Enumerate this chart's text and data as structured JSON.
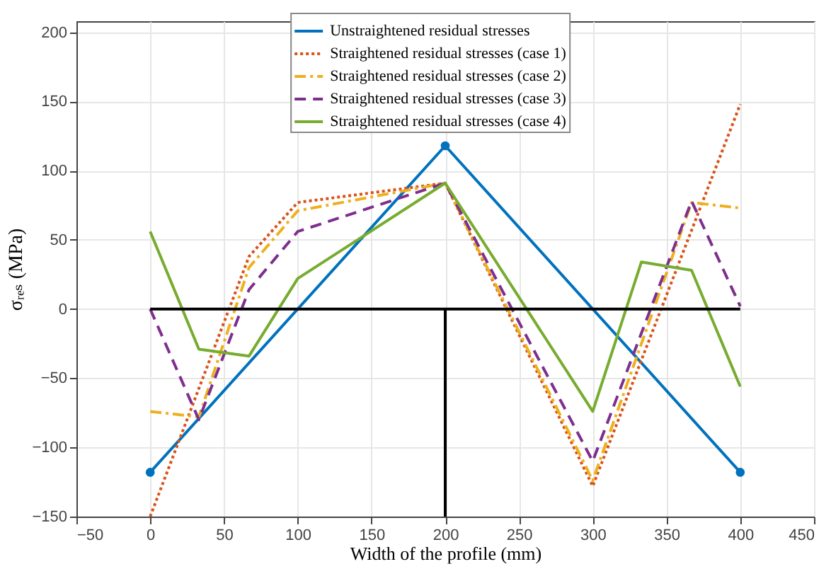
{
  "chart_data": {
    "type": "line",
    "xlabel": "Width of the profile (mm)",
    "ylabel": "σᵣₑₛ (MPa)",
    "xlim": [
      -50,
      450
    ],
    "xticks": [
      -50,
      0,
      50,
      100,
      150,
      200,
      250,
      300,
      350,
      400,
      450
    ],
    "ylim": [
      -150,
      208
    ],
    "yticks": [
      -150,
      -100,
      -50,
      0,
      50,
      100,
      150,
      200
    ],
    "grid": true,
    "legend": "top right",
    "ref_lines": [
      {
        "axis": "y",
        "value": 0,
        "color": "#000000"
      },
      {
        "axis": "x",
        "value": 200,
        "color": "#000000"
      }
    ],
    "series": [
      {
        "name": "Unstraightened residual stresses",
        "color": "#0072bd",
        "marker": "circle",
        "line_style": "solid",
        "x": [
          0,
          200,
          400
        ],
        "values": [
          -118,
          118,
          -118
        ]
      },
      {
        "name": "Straightened residual stresses (case 1)",
        "color": "#d95319",
        "marker": "none",
        "line_style": "dotted",
        "x": [
          0,
          67,
          100,
          200,
          300,
          400
        ],
        "values": [
          -150,
          38,
          77,
          91,
          -128,
          148
        ]
      },
      {
        "name": "Straightened residual stresses (case 2)",
        "color": "#edb120",
        "marker": "none",
        "line_style": "dashdot",
        "x": [
          0,
          33,
          67,
          100,
          200,
          300,
          367,
          400
        ],
        "values": [
          -74,
          -78,
          30,
          71,
          91,
          -124,
          77,
          73
        ]
      },
      {
        "name": "Straightened residual stresses (case 3)",
        "color": "#7e2f8e",
        "marker": "none",
        "line_style": "dashed",
        "x": [
          0,
          33,
          67,
          100,
          200,
          300,
          367,
          400
        ],
        "values": [
          0,
          -80,
          14,
          56,
          91,
          -110,
          78,
          2
        ]
      },
      {
        "name": "Straightened residual stresses (case 4)",
        "color": "#77ac30",
        "marker": "none",
        "line_style": "solid",
        "x": [
          0,
          33,
          67,
          100,
          200,
          300,
          333,
          367,
          400
        ],
        "values": [
          56,
          -29,
          -34,
          22,
          91,
          -74,
          34,
          28,
          -56
        ]
      }
    ]
  }
}
